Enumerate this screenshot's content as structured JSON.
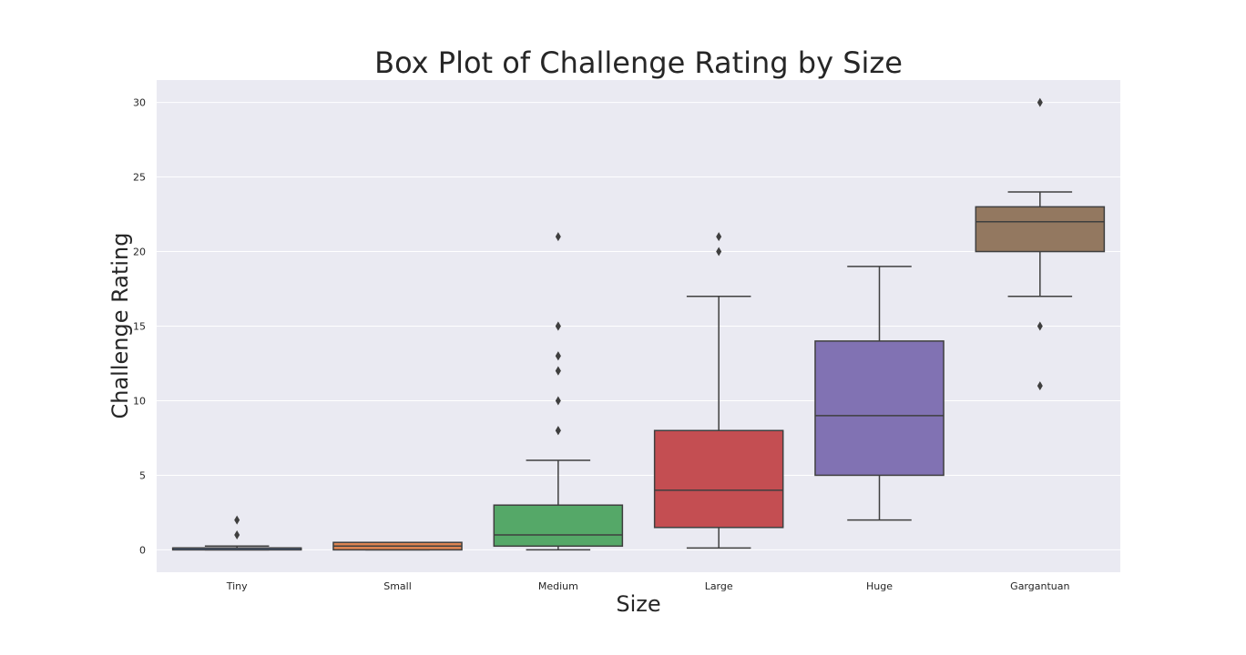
{
  "chart_data": {
    "type": "box",
    "title": "Box Plot of Challenge Rating by Size",
    "xlabel": "Size",
    "ylabel": "Challenge Rating",
    "ylim": [
      -1.5,
      31.5
    ],
    "yticks": [
      0,
      5,
      10,
      15,
      20,
      25,
      30
    ],
    "grid": true,
    "categories": [
      "Tiny",
      "Small",
      "Medium",
      "Large",
      "Huge",
      "Gargantuan"
    ],
    "boxes": [
      {
        "category": "Tiny",
        "color": "#4c72b0",
        "whisker_low": 0,
        "q1": 0,
        "median": 0.125,
        "q3": 0.125,
        "whisker_high": 0.25,
        "outliers": [
          1,
          2
        ]
      },
      {
        "category": "Small",
        "color": "#dd8452",
        "whisker_low": 0,
        "q1": 0,
        "median": 0.25,
        "q3": 0.5,
        "whisker_high": 0.5,
        "outliers": []
      },
      {
        "category": "Medium",
        "color": "#55a868",
        "whisker_low": 0,
        "q1": 0.25,
        "median": 1,
        "q3": 3,
        "whisker_high": 6,
        "outliers": [
          8,
          8,
          10,
          12,
          12,
          13,
          13,
          15,
          15,
          21
        ]
      },
      {
        "category": "Large",
        "color": "#c44e52",
        "whisker_low": 0.125,
        "q1": 1.5,
        "median": 4,
        "q3": 8,
        "whisker_high": 17,
        "outliers": [
          20,
          21
        ]
      },
      {
        "category": "Huge",
        "color": "#8172b3",
        "whisker_low": 2,
        "q1": 5,
        "median": 9,
        "q3": 14,
        "whisker_high": 19,
        "outliers": []
      },
      {
        "category": "Gargantuan",
        "color": "#937860",
        "whisker_low": 17,
        "q1": 20,
        "median": 22,
        "q3": 23,
        "whisker_high": 24,
        "outliers": [
          11,
          15,
          30
        ]
      }
    ],
    "background_color": "#eaeaf2",
    "line_color": "#3f3f3f"
  }
}
